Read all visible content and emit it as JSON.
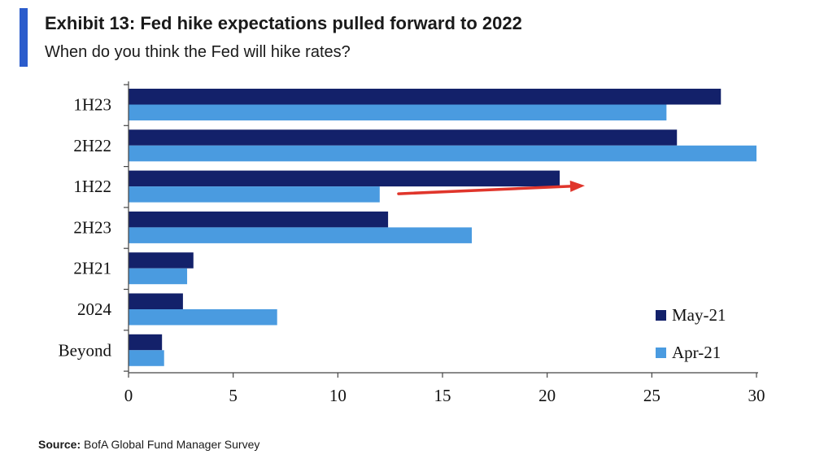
{
  "header": {
    "title": "Exhibit 13: Fed hike expectations pulled forward to 2022",
    "subtitle": "When do you think the Fed will hike rates?"
  },
  "footer": {
    "source_label": "Source:",
    "source_text": "BofA Global Fund Manager Survey"
  },
  "colors": {
    "accent": "#2b5ccc",
    "may": "#13216a",
    "apr": "#4a9be0",
    "arrow": "#e0352b"
  },
  "chart_data": {
    "type": "bar",
    "orientation": "horizontal",
    "title": "",
    "xlabel": "",
    "ylabel": "",
    "xlim": [
      0,
      30
    ],
    "x_ticks": [
      0,
      5,
      10,
      15,
      20,
      25,
      30
    ],
    "categories": [
      "1H23",
      "2H22",
      "1H22",
      "2H23",
      "2H21",
      "2024",
      "Beyond"
    ],
    "series": [
      {
        "name": "May-21",
        "color": "#13216a",
        "values": [
          28.3,
          26.2,
          20.6,
          12.4,
          3.1,
          2.6,
          1.6
        ]
      },
      {
        "name": "Apr-21",
        "color": "#4a9be0",
        "values": [
          25.7,
          30.0,
          12.0,
          16.4,
          2.8,
          7.1,
          1.7
        ]
      }
    ],
    "grid": false,
    "legend_position": "bottom-right",
    "annotations": [
      {
        "type": "arrow",
        "color": "#e0352b",
        "from": [
          12.9,
          "1H22"
        ],
        "to": [
          21.8,
          "1H22"
        ]
      }
    ]
  }
}
